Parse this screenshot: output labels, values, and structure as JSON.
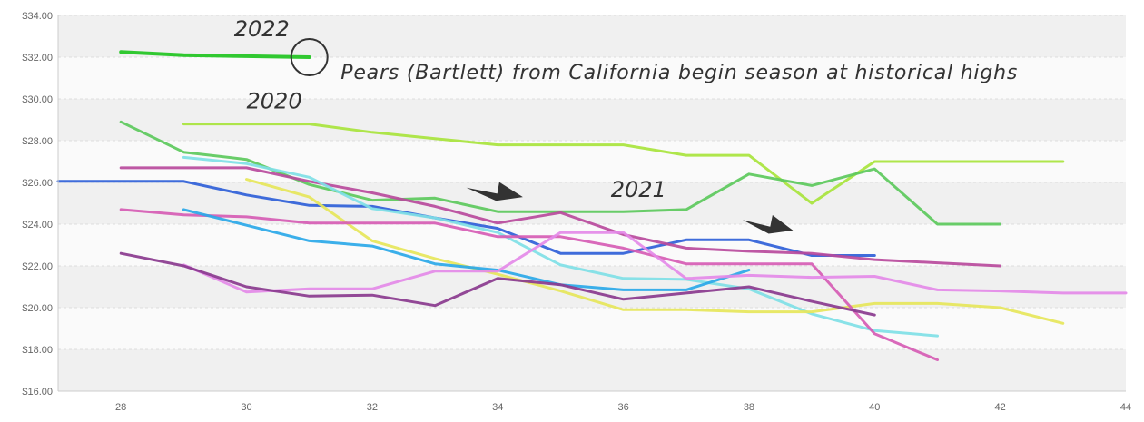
{
  "chart_data": {
    "type": "line",
    "title": "",
    "xlabel": "",
    "ylabel": "",
    "xlim": [
      27,
      44
    ],
    "ylim": [
      16,
      34
    ],
    "x_ticks": [
      28,
      30,
      32,
      34,
      36,
      38,
      40,
      42,
      44
    ],
    "x_tick_labels": [
      "28",
      "30",
      "32",
      "34",
      "36",
      "38",
      "40",
      "42",
      "44"
    ],
    "y_ticks": [
      16,
      18,
      20,
      22,
      24,
      26,
      28,
      30,
      32,
      34
    ],
    "y_tick_labels": [
      "$16.00",
      "$18.00",
      "$20.00",
      "$22.00",
      "$24.00",
      "$26.00",
      "$28.00",
      "$30.00",
      "$32.00",
      "$34.00"
    ],
    "grid": true,
    "series": [
      {
        "color": "#1fc41f",
        "width": 4,
        "points": [
          [
            28,
            32.25
          ],
          [
            29,
            32.1
          ],
          [
            30,
            32.05
          ],
          [
            31,
            32.0
          ]
        ]
      },
      {
        "color": "#a8e43c",
        "width": 3,
        "points": [
          [
            29,
            28.8
          ],
          [
            30,
            28.8
          ],
          [
            31,
            28.8
          ],
          [
            32,
            28.4
          ],
          [
            33,
            28.1
          ],
          [
            34,
            27.8
          ],
          [
            35,
            27.8
          ],
          [
            36,
            27.8
          ],
          [
            37,
            27.3
          ],
          [
            38,
            27.3
          ],
          [
            39,
            25.0
          ],
          [
            40,
            27.0
          ],
          [
            41,
            27.0
          ],
          [
            42,
            27.0
          ],
          [
            43,
            27.0
          ]
        ]
      },
      {
        "color": "#5cc95c",
        "width": 3,
        "points": [
          [
            28,
            28.9
          ],
          [
            29,
            27.45
          ],
          [
            30,
            27.1
          ],
          [
            31,
            25.9
          ],
          [
            32,
            25.15
          ],
          [
            33,
            25.25
          ],
          [
            34,
            24.6
          ],
          [
            35,
            24.6
          ],
          [
            36,
            24.6
          ],
          [
            37,
            24.7
          ],
          [
            38,
            26.4
          ],
          [
            39,
            25.85
          ],
          [
            40,
            26.65
          ],
          [
            41,
            24.0
          ],
          [
            42,
            24.0
          ]
        ]
      },
      {
        "color": "#2f5fd8",
        "width": 3,
        "points": [
          [
            27,
            26.05
          ],
          [
            28,
            26.05
          ],
          [
            29,
            26.05
          ],
          [
            30,
            25.4
          ],
          [
            31,
            24.9
          ],
          [
            32,
            24.85
          ],
          [
            33,
            24.3
          ],
          [
            34,
            23.8
          ],
          [
            35,
            22.6
          ],
          [
            36,
            22.6
          ],
          [
            37,
            23.25
          ],
          [
            38,
            23.25
          ],
          [
            39,
            22.5
          ],
          [
            40,
            22.5
          ]
        ]
      },
      {
        "color": "#b84a9c",
        "width": 3,
        "points": [
          [
            28,
            26.7
          ],
          [
            29,
            26.7
          ],
          [
            30,
            26.7
          ],
          [
            31,
            26.05
          ],
          [
            32,
            25.5
          ],
          [
            33,
            24.85
          ],
          [
            34,
            24.05
          ],
          [
            35,
            24.55
          ],
          [
            36,
            23.5
          ],
          [
            37,
            22.85
          ],
          [
            38,
            22.7
          ],
          [
            39,
            22.6
          ],
          [
            40,
            22.3
          ],
          [
            41,
            22.15
          ],
          [
            42,
            22.0
          ]
        ]
      },
      {
        "color": "#7fe0e6",
        "width": 3,
        "points": [
          [
            29,
            27.2
          ],
          [
            30,
            26.9
          ],
          [
            31,
            26.25
          ],
          [
            32,
            24.75
          ],
          [
            33,
            24.3
          ],
          [
            34,
            23.6
          ],
          [
            35,
            22.05
          ],
          [
            36,
            21.4
          ],
          [
            37,
            21.35
          ],
          [
            38,
            20.9
          ],
          [
            39,
            19.7
          ],
          [
            40,
            18.9
          ],
          [
            41,
            18.65
          ]
        ]
      },
      {
        "color": "#e6e65a",
        "width": 3,
        "points": [
          [
            30,
            26.15
          ],
          [
            31,
            25.3
          ],
          [
            32,
            23.2
          ],
          [
            33,
            22.35
          ],
          [
            34,
            21.6
          ],
          [
            35,
            20.8
          ],
          [
            36,
            19.9
          ],
          [
            37,
            19.9
          ],
          [
            38,
            19.8
          ],
          [
            39,
            19.8
          ],
          [
            40,
            20.2
          ],
          [
            41,
            20.2
          ],
          [
            42,
            20.0
          ],
          [
            43,
            19.25
          ]
        ]
      },
      {
        "color": "#d65cb4",
        "width": 3,
        "points": [
          [
            28,
            24.7
          ],
          [
            29,
            24.45
          ],
          [
            30,
            24.35
          ],
          [
            31,
            24.05
          ],
          [
            32,
            24.05
          ],
          [
            33,
            24.05
          ],
          [
            34,
            23.4
          ],
          [
            35,
            23.4
          ],
          [
            36,
            22.85
          ],
          [
            37,
            22.1
          ],
          [
            38,
            22.1
          ],
          [
            39,
            22.1
          ],
          [
            40,
            18.75
          ],
          [
            41,
            17.5
          ]
        ]
      },
      {
        "color": "#2aa8e8",
        "width": 3,
        "points": [
          [
            29,
            24.7
          ],
          [
            30,
            23.95
          ],
          [
            31,
            23.2
          ],
          [
            32,
            22.95
          ],
          [
            33,
            22.1
          ],
          [
            34,
            21.8
          ],
          [
            35,
            21.1
          ],
          [
            36,
            20.85
          ],
          [
            37,
            20.85
          ],
          [
            38,
            21.8
          ]
        ]
      },
      {
        "color": "#e48ae8",
        "width": 3,
        "points": [
          [
            29,
            22.05
          ],
          [
            30,
            20.75
          ],
          [
            31,
            20.9
          ],
          [
            32,
            20.9
          ],
          [
            33,
            21.75
          ],
          [
            34,
            21.75
          ],
          [
            35,
            23.6
          ],
          [
            36,
            23.6
          ],
          [
            37,
            21.4
          ],
          [
            38,
            21.55
          ],
          [
            39,
            21.45
          ],
          [
            40,
            21.5
          ],
          [
            41,
            20.85
          ],
          [
            42,
            20.8
          ],
          [
            43,
            20.7
          ],
          [
            44,
            20.7
          ]
        ]
      },
      {
        "color": "#8a3a8e",
        "width": 3,
        "points": [
          [
            28,
            22.6
          ],
          [
            29,
            22.0
          ],
          [
            30,
            21.0
          ],
          [
            31,
            20.55
          ],
          [
            32,
            20.6
          ],
          [
            33,
            20.1
          ],
          [
            34,
            21.4
          ],
          [
            35,
            21.1
          ],
          [
            36,
            20.4
          ],
          [
            37,
            20.7
          ],
          [
            38,
            21.0
          ],
          [
            39,
            20.3
          ],
          [
            40,
            19.65
          ]
        ]
      }
    ],
    "annotations": [
      {
        "text": "2022",
        "x": 29.8,
        "y": 33.0
      },
      {
        "text": "2020",
        "x": 30.0,
        "y": 29.55
      },
      {
        "text": "2021",
        "x": 35.8,
        "y": 25.3
      },
      {
        "text": "Pears (Bartlett) from California begin season at historical highs",
        "x": 31.5,
        "y": 30.95
      }
    ],
    "arrows": [
      {
        "x1": 33.5,
        "y1": 25.75,
        "x2": 34.4,
        "y2": 25.3
      },
      {
        "x1": 37.9,
        "y1": 24.2,
        "x2": 38.7,
        "y2": 23.7
      }
    ],
    "circle": {
      "x": 31.0,
      "y": 32.0
    }
  }
}
